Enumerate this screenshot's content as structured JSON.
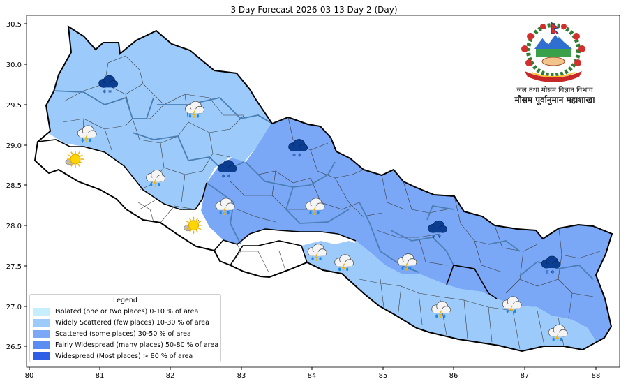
{
  "title": "3 Day Forecast 2026-03-13 Day 2 (Day)",
  "axes": {
    "x_ticks": [
      "80",
      "81",
      "82",
      "83",
      "84",
      "85",
      "86",
      "87",
      "88"
    ],
    "y_ticks": [
      "26.5",
      "27.0",
      "27.5",
      "28.0",
      "28.5",
      "29.0",
      "29.5",
      "30.0",
      "30.5"
    ]
  },
  "legend": {
    "title": "Legend",
    "items": [
      {
        "label": "Isolated (one or two places)  0-10 % of area",
        "color": "#c6eefc"
      },
      {
        "label": "Widely Scattered (few places)  10-30 % of area",
        "color": "#9ccbfb"
      },
      {
        "label": "Scattered (some places)  30-50 % of area",
        "color": "#7ba8f6"
      },
      {
        "label": "Fairly Widespread (many places)  50-80 % of area",
        "color": "#5b8cf0"
      },
      {
        "label": "Widespread (Most places) > 80 % of area",
        "color": "#2e60e6"
      }
    ]
  },
  "organization": {
    "line1": "जल तथा मौसम विज्ञान विभाग",
    "line2": "मौसम पूर्वानुमान महाशाखा"
  },
  "region_colors": {
    "widely_scattered": "#9ccbfb",
    "scattered": "#7ba8f6",
    "none": "#ffffff"
  },
  "weather_icons": [
    {
      "type": "snow-cloud-icon",
      "lon": 81.1,
      "lat": 29.77
    },
    {
      "type": "rain-cloud-icon",
      "lon": 82.32,
      "lat": 29.45
    },
    {
      "type": "rain-cloud-icon",
      "lon": 80.8,
      "lat": 29.15
    },
    {
      "type": "sunny-icon",
      "lon": 80.65,
      "lat": 28.82
    },
    {
      "type": "rain-cloud-icon",
      "lon": 81.77,
      "lat": 28.6
    },
    {
      "type": "snow-cloud-icon",
      "lon": 83.78,
      "lat": 28.98
    },
    {
      "type": "snow-cloud-icon",
      "lon": 82.78,
      "lat": 28.72
    },
    {
      "type": "rain-cloud-icon",
      "lon": 82.75,
      "lat": 28.25
    },
    {
      "type": "sunny-icon",
      "lon": 82.32,
      "lat": 28.0
    },
    {
      "type": "rain-cloud-icon",
      "lon": 84.02,
      "lat": 28.25
    },
    {
      "type": "rain-cloud-icon",
      "lon": 84.05,
      "lat": 27.68
    },
    {
      "type": "rain-cloud-icon",
      "lon": 84.43,
      "lat": 27.55
    },
    {
      "type": "rain-cloud-icon",
      "lon": 85.32,
      "lat": 27.56
    },
    {
      "type": "snow-cloud-icon",
      "lon": 85.75,
      "lat": 27.97
    },
    {
      "type": "rain-cloud-icon",
      "lon": 85.8,
      "lat": 26.97
    },
    {
      "type": "rain-cloud-icon",
      "lon": 86.8,
      "lat": 27.03
    },
    {
      "type": "snow-cloud-icon",
      "lon": 87.35,
      "lat": 27.53
    },
    {
      "type": "rain-cloud-icon",
      "lon": 87.45,
      "lat": 26.68
    }
  ]
}
